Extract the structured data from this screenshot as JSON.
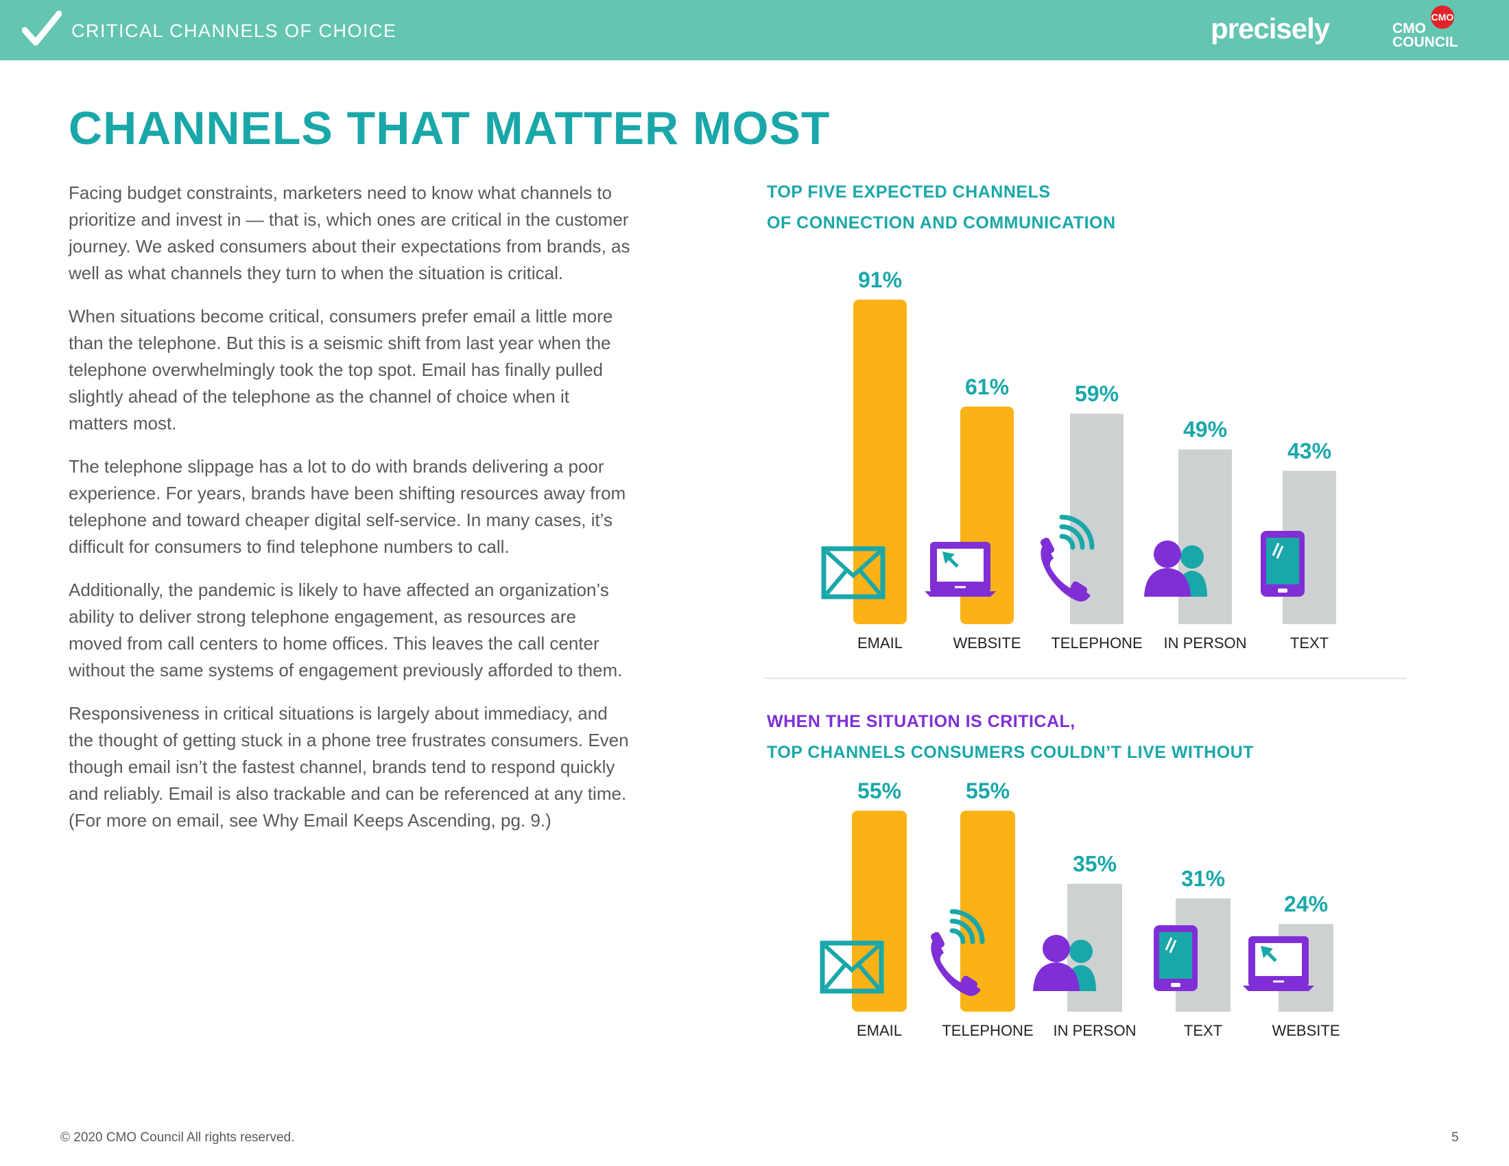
{
  "header": {
    "section_label": "CRITICAL CHANNELS OF CHOICE",
    "brand": "precisely",
    "logo_lines": [
      "CMO",
      "COUNCIL"
    ],
    "logo_badge": "CMO",
    "bg_color": "#64c5b1"
  },
  "page_title": "CHANNELS THAT MATTER MOST",
  "body_paragraphs": [
    "Facing budget constraints, marketers need to know what channels to prioritize and invest in — that is, which ones are critical in the customer journey. We asked consumers about their expectations from brands, as well as what channels they turn to when the situation is critical.",
    "When situations become critical, consumers prefer email a little more than the telephone. But this is a seismic shift from last year when the telephone overwhelmingly took the top spot. Email has finally pulled slightly ahead of the telephone as the channel of choice when it matters most.",
    "The telephone slippage has a lot to do with brands delivering a poor experience. For years, brands have been shifting resources away from telephone and toward cheaper digital self-service. In many cases, it’s difficult for consumers to find telephone numbers to call.",
    "Additionally, the pandemic is likely to have affected an organization’s ability to deliver strong telephone engagement, as resources are moved from call centers to home offices. This leaves the call center without the same systems of engagement previously afforded to them.",
    "Responsiveness in critical situations is largely about immediacy, and the thought of getting stuck in a phone tree frustrates consumers. Even though email isn’t the fastest channel, brands tend to respond quickly and reliably. Email is also trackable and can be referenced at any time. (For more on email, see Why Email Keeps Ascending, pg. 9.)"
  ],
  "colors": {
    "teal": "#1aa7a9",
    "purple": "#7f2fd5",
    "highlight_bar": "#fbb216",
    "other_bar": "#cdd1d2",
    "label_text": "#231f20"
  },
  "chart_data": [
    {
      "type": "bar",
      "title_lines": [
        "TOP FIVE EXPECTED CHANNELS",
        "OF CONNECTION AND COMMUNICATION"
      ],
      "categories": [
        "EMAIL",
        "WEBSITE",
        "TELEPHONE",
        "IN PERSON",
        "TEXT"
      ],
      "values": [
        91,
        61,
        59,
        49,
        43
      ],
      "value_labels": [
        "91%",
        "61%",
        "59%",
        "49%",
        "43%"
      ],
      "highlighted": [
        true,
        true,
        false,
        false,
        false
      ],
      "icons": [
        "email-icon",
        "laptop-icon",
        "phone-icon",
        "people-icon",
        "tablet-icon"
      ],
      "ylim": [
        0,
        100
      ]
    },
    {
      "type": "bar",
      "title_lines": [
        "WHEN THE SITUATION IS CRITICAL,",
        "TOP CHANNELS CONSUMERS COULDN’T LIVE WITHOUT"
      ],
      "categories": [
        "EMAIL",
        "TELEPHONE",
        "IN PERSON",
        "TEXT",
        "WEBSITE"
      ],
      "values": [
        55,
        55,
        35,
        31,
        24
      ],
      "value_labels": [
        "55%",
        "55%",
        "35%",
        "31%",
        "24%"
      ],
      "highlighted": [
        true,
        true,
        false,
        false,
        false
      ],
      "icons": [
        "email-icon",
        "phone-icon",
        "people-icon",
        "tablet-icon",
        "laptop-icon"
      ],
      "ylim": [
        0,
        55
      ]
    }
  ],
  "footer": {
    "copyright": "© 2020 CMO Council  All rights reserved.",
    "page_number": "5"
  }
}
